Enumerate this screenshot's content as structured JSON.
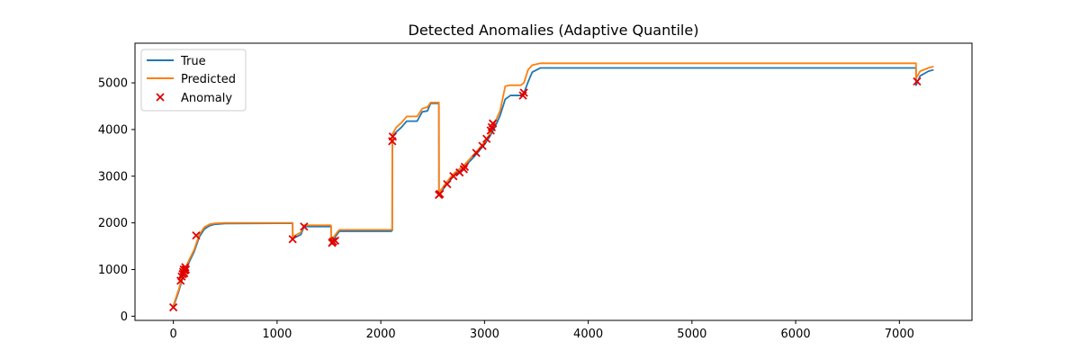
{
  "chart_data": {
    "type": "line",
    "title": "Detected Anomalies (Adaptive Quantile)",
    "xlabel": "",
    "ylabel": "",
    "xlim": [
      -370,
      7700
    ],
    "ylim": [
      -90,
      5850
    ],
    "x_ticks": [
      0,
      1000,
      2000,
      3000,
      4000,
      5000,
      6000,
      7000
    ],
    "y_ticks": [
      0,
      1000,
      2000,
      3000,
      4000,
      5000
    ],
    "grid": false,
    "legend_position": "upper-left",
    "colors": {
      "true": "#1f77b4",
      "predicted": "#ff7f0e",
      "anomaly": "#e00000"
    },
    "series": [
      {
        "name": "True",
        "x": [
          0,
          50,
          100,
          150,
          200,
          250,
          300,
          350,
          400,
          500,
          1000,
          1150,
          1151,
          1230,
          1260,
          1520,
          1521,
          1580,
          1600,
          2100,
          2110,
          2111,
          2150,
          2200,
          2250,
          2350,
          2400,
          2450,
          2480,
          2560,
          2561,
          2620,
          2700,
          2800,
          2900,
          3000,
          3050,
          3100,
          3150,
          3200,
          3250,
          3350,
          3380,
          3420,
          3460,
          3540,
          4000,
          5000,
          6000,
          7150,
          7160,
          7161,
          7200,
          7280,
          7330
        ],
        "y": [
          200,
          520,
          900,
          1150,
          1380,
          1700,
          1870,
          1940,
          1970,
          1985,
          1990,
          1990,
          1660,
          1750,
          1920,
          1920,
          1580,
          1760,
          1820,
          1820,
          1840,
          3850,
          3950,
          4050,
          4180,
          4180,
          4380,
          4400,
          4560,
          4560,
          2600,
          2780,
          3000,
          3180,
          3420,
          3680,
          3850,
          4050,
          4300,
          4650,
          4730,
          4730,
          4780,
          5020,
          5230,
          5320,
          5320,
          5320,
          5320,
          5320,
          5320,
          4950,
          5150,
          5250,
          5280
        ]
      },
      {
        "name": "Predicted",
        "x": [
          0,
          50,
          100,
          150,
          200,
          250,
          300,
          350,
          400,
          500,
          1000,
          1150,
          1151,
          1230,
          1260,
          1520,
          1521,
          1580,
          1600,
          2100,
          2110,
          2111,
          2150,
          2200,
          2250,
          2350,
          2400,
          2450,
          2480,
          2560,
          2561,
          2620,
          2700,
          2800,
          2900,
          3000,
          3050,
          3100,
          3150,
          3200,
          3250,
          3350,
          3380,
          3420,
          3460,
          3540,
          4000,
          5000,
          6000,
          7150,
          7160,
          7161,
          7200,
          7280,
          7330
        ],
        "y": [
          230,
          560,
          950,
          1200,
          1420,
          1750,
          1910,
          1970,
          1990,
          2000,
          2000,
          2000,
          1700,
          1800,
          1950,
          1950,
          1620,
          1800,
          1850,
          1850,
          1870,
          3900,
          4050,
          4150,
          4280,
          4280,
          4450,
          4480,
          4580,
          4580,
          2640,
          2830,
          3050,
          3230,
          3470,
          3730,
          3900,
          4150,
          4400,
          4930,
          4950,
          4950,
          5000,
          5280,
          5380,
          5420,
          5420,
          5420,
          5420,
          5420,
          5420,
          5100,
          5250,
          5320,
          5350
        ]
      }
    ],
    "anomaly": {
      "name": "Anomaly",
      "x": [
        0,
        70,
        80,
        90,
        95,
        100,
        105,
        110,
        115,
        120,
        220,
        1150,
        1260,
        1530,
        1540,
        1560,
        2110,
        2115,
        2560,
        2570,
        2640,
        2700,
        2760,
        2800,
        2810,
        2920,
        2980,
        3020,
        3060,
        3070,
        3080,
        3370,
        3380,
        7170
      ],
      "y": [
        190,
        760,
        850,
        900,
        950,
        1000,
        920,
        980,
        1050,
        1000,
        1730,
        1650,
        1920,
        1570,
        1600,
        1620,
        3750,
        3850,
        2600,
        2620,
        2830,
        3000,
        3080,
        3150,
        3200,
        3500,
        3650,
        3800,
        3980,
        4050,
        4130,
        4730,
        4790,
        5030
      ]
    }
  }
}
